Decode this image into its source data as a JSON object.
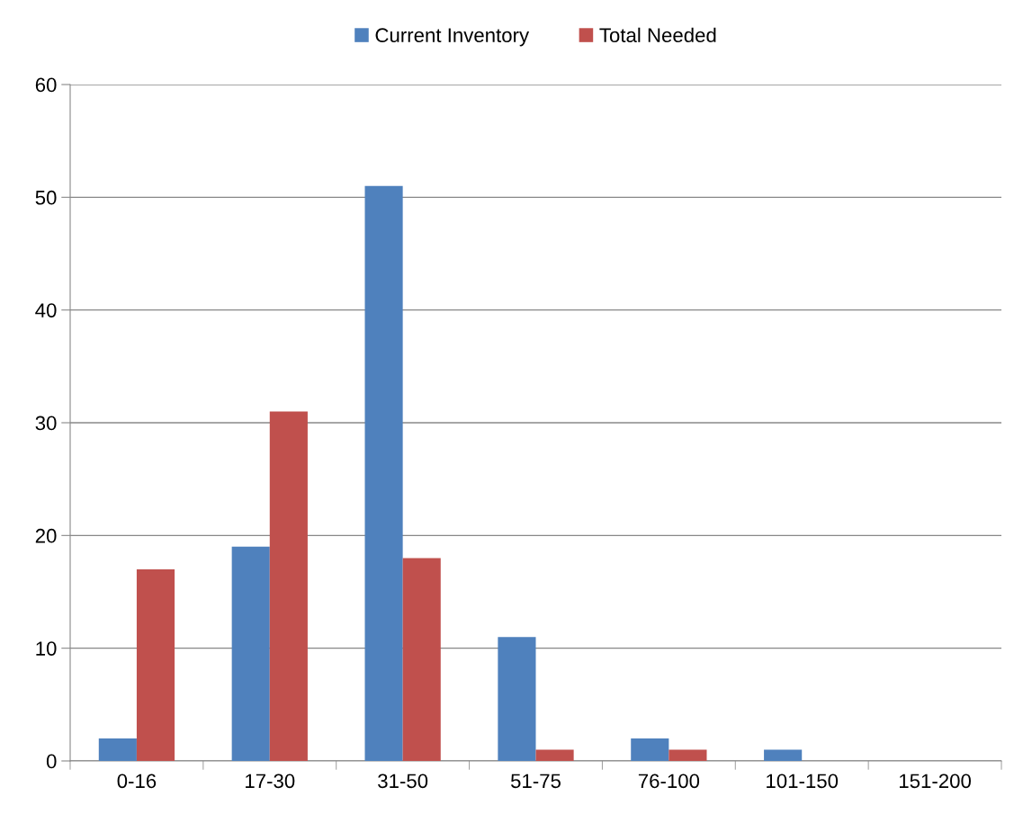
{
  "chart_data": {
    "type": "bar",
    "categories": [
      "0-16",
      "17-30",
      "31-50",
      "51-75",
      "76-100",
      "101-150",
      "151-200"
    ],
    "series": [
      {
        "name": "Current Inventory",
        "color": "#4f81bd",
        "values": [
          2,
          19,
          51,
          11,
          2,
          1,
          0
        ]
      },
      {
        "name": "Total Needed",
        "color": "#c0504d",
        "values": [
          17,
          31,
          18,
          1,
          1,
          0,
          0
        ]
      }
    ],
    "ylim": [
      0,
      60
    ],
    "yticks": [
      0,
      10,
      20,
      30,
      40,
      50,
      60
    ],
    "grid": "y",
    "legend": "top"
  }
}
